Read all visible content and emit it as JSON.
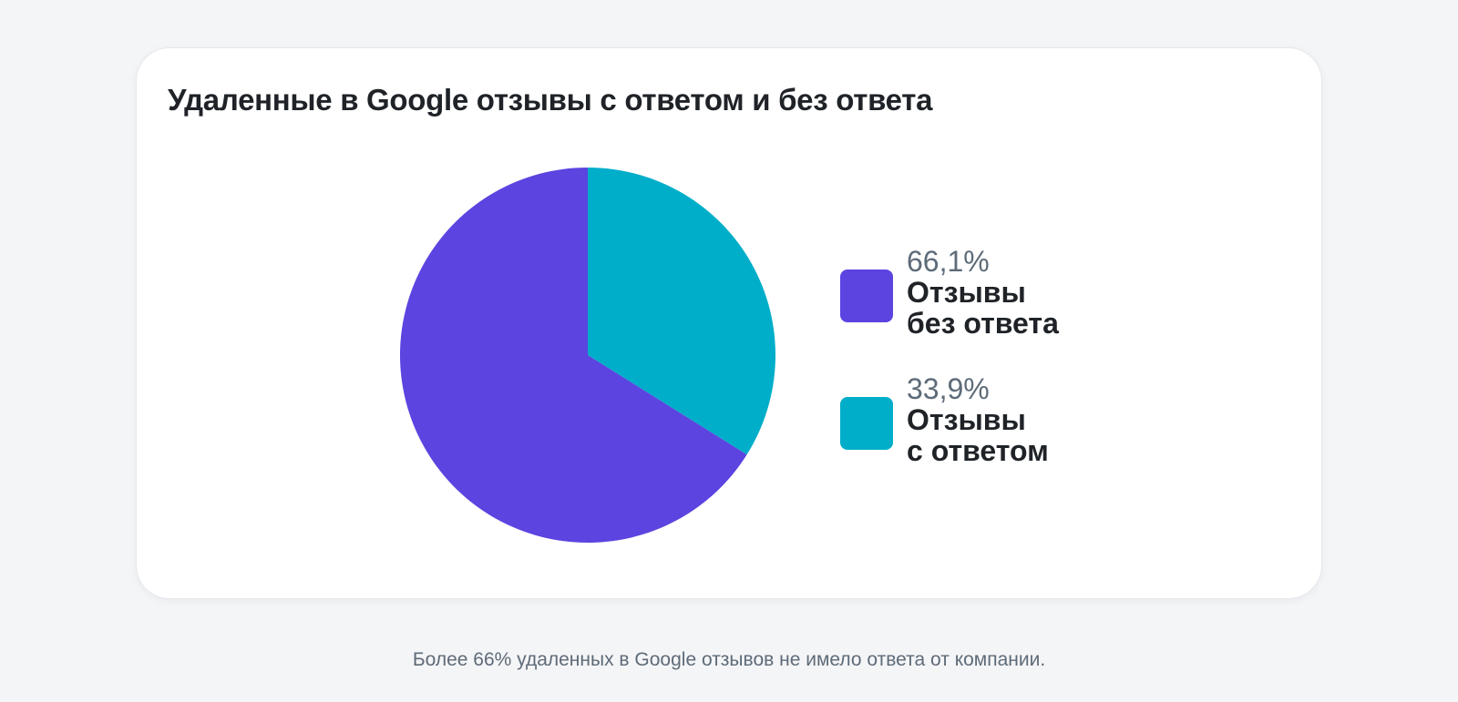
{
  "chart_data": {
    "type": "pie",
    "title": "Удаленные в Google отзывы с ответом и без ответа",
    "series": [
      {
        "name": "Отзывы без ответа",
        "label_line1": "Отзывы",
        "label_line2": "без ответа",
        "value": 66.1,
        "display_value": "66,1%",
        "color": "#5b44e0"
      },
      {
        "name": "Отзывы с ответом",
        "label_line1": "Отзывы",
        "label_line2": "с ответом",
        "value": 33.9,
        "display_value": "33,9%",
        "color": "#00aec9"
      }
    ],
    "legend_position": "right"
  },
  "caption": "Более 66% удаленных в Google отзывов не имело ответа от компании."
}
